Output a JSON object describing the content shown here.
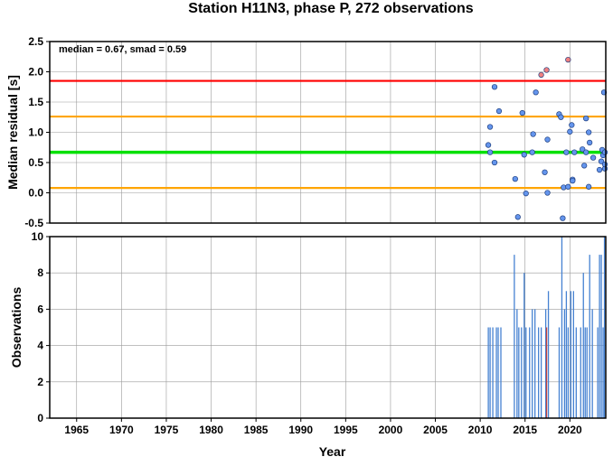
{
  "title": "Station H11N3, phase P, 272 observations",
  "chart_data": [
    {
      "type": "scatter",
      "ylabel": "Median residual [s]",
      "xlabel": "",
      "annotation": "median = 0.67, smad = 0.59",
      "xlim": [
        1962,
        2024
      ],
      "ylim": [
        -0.5,
        2.5
      ],
      "yticks": [
        "-0.5",
        "0.0",
        "0.5",
        "1.0",
        "1.5",
        "2.0",
        "2.5"
      ],
      "ytick_values": [
        -0.5,
        0.0,
        0.5,
        1.0,
        1.5,
        2.0,
        2.5
      ],
      "xgrid": [
        1965,
        1970,
        1975,
        1980,
        1985,
        1990,
        1995,
        2000,
        2005,
        2010,
        2015,
        2020
      ],
      "grid": true,
      "reference_lines": [
        {
          "y": 1.85,
          "color": "#ff0000"
        },
        {
          "y": 1.26,
          "color": "#ffa500"
        },
        {
          "y": 0.67,
          "color": "#00e000"
        },
        {
          "y": 0.08,
          "color": "#ffa500"
        }
      ],
      "series": [
        {
          "color": "#6495ed",
          "points": [
            [
              2010.9,
              0.79
            ],
            [
              2011.1,
              1.09
            ],
            [
              2011.1,
              0.67
            ],
            [
              2011.6,
              0.5
            ],
            [
              2011.6,
              1.75
            ],
            [
              2012.1,
              1.35
            ],
            [
              2013.9,
              0.23
            ],
            [
              2014.2,
              -0.4
            ],
            [
              2014.7,
              1.32
            ],
            [
              2014.9,
              0.63
            ],
            [
              2015.1,
              -0.01
            ],
            [
              2015.9,
              0.97
            ],
            [
              2015.8,
              0.67
            ],
            [
              2016.2,
              1.66
            ],
            [
              2017.2,
              0.34
            ],
            [
              2017.5,
              0.88
            ],
            [
              2017.5,
              0.0
            ],
            [
              2018.8,
              1.3
            ],
            [
              2019.0,
              1.25
            ],
            [
              2019.3,
              0.09
            ],
            [
              2019.2,
              -0.42
            ],
            [
              2019.6,
              0.67
            ],
            [
              2019.8,
              0.1
            ],
            [
              2020.0,
              1.01
            ],
            [
              2020.2,
              1.12
            ],
            [
              2020.3,
              0.22
            ],
            [
              2020.3,
              0.2
            ],
            [
              2020.5,
              0.67
            ],
            [
              2021.4,
              0.72
            ],
            [
              2021.6,
              0.45
            ],
            [
              2021.8,
              0.67
            ],
            [
              2021.8,
              1.23
            ],
            [
              2022.1,
              0.1
            ],
            [
              2022.2,
              0.83
            ],
            [
              2022.1,
              1.0
            ],
            [
              2022.6,
              0.58
            ],
            [
              2023.3,
              0.38
            ],
            [
              2023.5,
              0.52
            ],
            [
              2023.6,
              0.71
            ],
            [
              2023.8,
              1.66
            ],
            [
              2023.7,
              0.62
            ],
            [
              2024.0,
              0.4
            ],
            [
              2024.0,
              0.47
            ],
            [
              2023.9,
              0.67
            ]
          ]
        },
        {
          "color": "#f08080",
          "points": [
            [
              2016.8,
              1.95
            ],
            [
              2017.4,
              2.03
            ],
            [
              2019.8,
              2.2
            ]
          ]
        }
      ]
    },
    {
      "type": "bar",
      "ylabel": "Observations",
      "xlabel": "Year",
      "xlim": [
        1962,
        2024
      ],
      "ylim": [
        0,
        10
      ],
      "yticks": [
        "0",
        "2",
        "4",
        "6",
        "8",
        "10"
      ],
      "ytick_values": [
        0,
        2,
        4,
        6,
        8,
        10
      ],
      "xticks": [
        "1965",
        "1970",
        "1975",
        "1980",
        "1985",
        "1990",
        "1995",
        "2000",
        "2005",
        "2010",
        "2015",
        "2020"
      ],
      "xtick_values": [
        1965,
        1970,
        1975,
        1980,
        1985,
        1990,
        1995,
        2000,
        2005,
        2010,
        2015,
        2020
      ],
      "grid": true,
      "series": [
        {
          "color": "#4682d2",
          "bars": [
            [
              2010.9,
              5
            ],
            [
              2011.1,
              5
            ],
            [
              2011.4,
              5
            ],
            [
              2011.8,
              5
            ],
            [
              2012.0,
              5
            ],
            [
              2012.3,
              5
            ],
            [
              2013.8,
              9
            ],
            [
              2014.1,
              6
            ],
            [
              2014.3,
              5
            ],
            [
              2014.6,
              5
            ],
            [
              2014.9,
              8
            ],
            [
              2015.1,
              5
            ],
            [
              2015.5,
              5
            ],
            [
              2015.8,
              6
            ],
            [
              2016.1,
              6
            ],
            [
              2016.5,
              5
            ],
            [
              2016.8,
              5
            ],
            [
              2017.3,
              6
            ],
            [
              2017.6,
              7
            ],
            [
              2018.8,
              5
            ],
            [
              2019.1,
              10
            ],
            [
              2019.4,
              6
            ],
            [
              2019.6,
              7
            ],
            [
              2019.8,
              5
            ],
            [
              2020.1,
              7
            ],
            [
              2020.4,
              7
            ],
            [
              2020.7,
              5
            ],
            [
              2021.2,
              5
            ],
            [
              2021.5,
              8
            ],
            [
              2021.7,
              5
            ],
            [
              2021.9,
              5
            ],
            [
              2022.2,
              9
            ],
            [
              2022.5,
              6
            ],
            [
              2023.1,
              5
            ],
            [
              2023.3,
              9
            ],
            [
              2023.5,
              9
            ],
            [
              2023.7,
              5
            ],
            [
              2023.9,
              10
            ]
          ]
        },
        {
          "color": "#c04040",
          "bars": [
            [
              2017.4,
              5
            ]
          ]
        }
      ]
    }
  ]
}
